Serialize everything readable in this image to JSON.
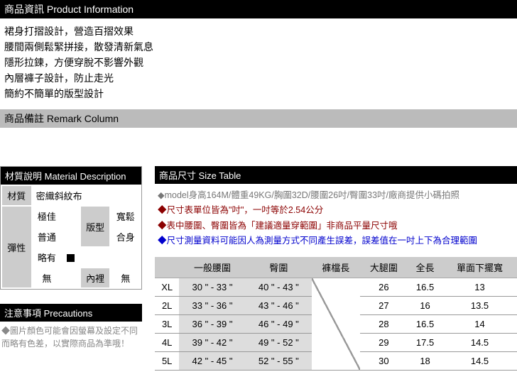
{
  "productInfo": {
    "header": "商品資訊 Product Information",
    "lines": [
      "裙身打摺設計，營造百摺效果",
      "腰間兩側鬆緊拼接，散發清新氣息",
      "隱形拉鍊，方便穿脫不影響外觀",
      "內層褲子設計，防止走光",
      "簡約不簡單的版型設計"
    ]
  },
  "remark": {
    "header": "商品備註 Remark Column"
  },
  "material": {
    "header": "材質說明 Material Description",
    "rowLabel": "材質",
    "rowValue": "密織斜紋布",
    "elastLabel": "彈性",
    "elast": {
      "best": "極佳",
      "normal": "普通",
      "some": "略有",
      "none": "無"
    },
    "fitLabel": "版型",
    "fit": {
      "loose": "寬鬆",
      "fitted": "合身"
    },
    "liningLabel": "內裡",
    "liningValue": "無"
  },
  "precautions": {
    "header": "注意事項 Precautions",
    "text": "◆圖片顏色可能會因螢幕及設定不同而略有色差，以實際商品為準哦！"
  },
  "sizeTable": {
    "header": "商品尺寸 Size Table",
    "notes": {
      "n1": "◆model身高164M/體重49KG/胸圍32D/腰圍26吋/臀圍33吋/廠商提供小碼拍照",
      "n2": "◆尺寸表單位皆為\"吋\"，一吋等於2.54公分",
      "n3": "◆表中腰圍、臀圍皆為「建議適量穿範圍」非商品平量尺寸哦",
      "n4": "◆尺寸測量資料可能因人為測量方式不同產生誤差，誤差值在一吋上下為合理範圍"
    },
    "columns": [
      "",
      "一般腰圍",
      "臀圍",
      "褲檔長",
      "大腿圍",
      "全長",
      "單面下擺寬"
    ],
    "rows": [
      {
        "sz": "XL",
        "waist": "30 \" - 33 \"",
        "hip": "40 \" - 43 \"",
        "crotch": "/",
        "thigh": "26",
        "len": "16.5",
        "hem": "13"
      },
      {
        "sz": "2L",
        "waist": "33 \" - 36 \"",
        "hip": "43 \" - 46 \"",
        "crotch": "",
        "thigh": "27",
        "len": "16",
        "hem": "13.5"
      },
      {
        "sz": "3L",
        "waist": "36 \" - 39 \"",
        "hip": "46 \" - 49 \"",
        "crotch": "",
        "thigh": "28",
        "len": "16.5",
        "hem": "14"
      },
      {
        "sz": "4L",
        "waist": "39 \" - 42 \"",
        "hip": "49 \" - 52 \"",
        "crotch": "",
        "thigh": "29",
        "len": "17.5",
        "hem": "14.5"
      },
      {
        "sz": "5L",
        "waist": "42 \" - 45 \"",
        "hip": "52 \" - 55 \"",
        "crotch": "",
        "thigh": "30",
        "len": "18",
        "hem": "14.5"
      }
    ]
  },
  "colors": {
    "maroon": "#8b0000",
    "blue": "#0000cd",
    "grey": "#777"
  }
}
